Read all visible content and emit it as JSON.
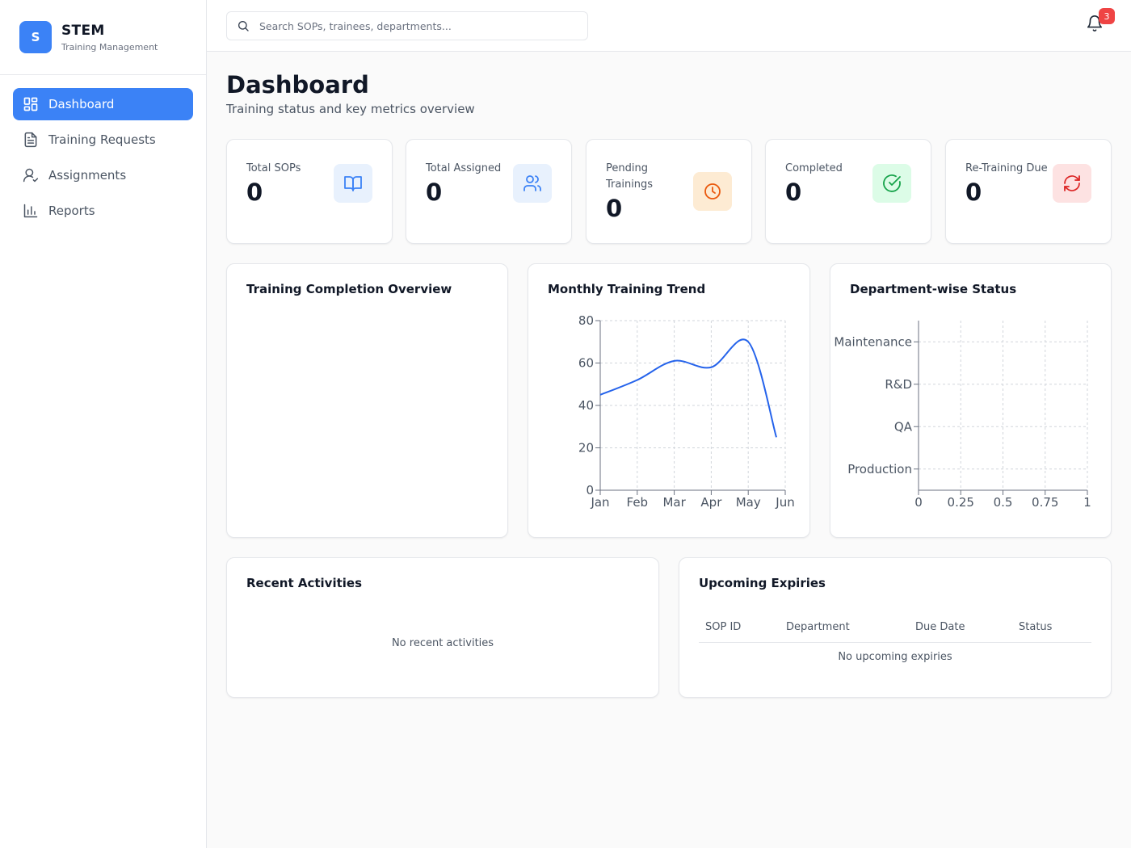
{
  "sidebar": {
    "brand": {
      "logo_letter": "S",
      "name": "STEM",
      "subtitle": "Training Management"
    },
    "items": [
      {
        "label": "Dashboard",
        "icon": "grid-icon",
        "active": true
      },
      {
        "label": "Training Requests",
        "icon": "file-text-icon",
        "active": false
      },
      {
        "label": "Assignments",
        "icon": "user-check-icon",
        "active": false
      },
      {
        "label": "Reports",
        "icon": "bar-chart-icon",
        "active": false
      }
    ]
  },
  "topbar": {
    "search_placeholder": "Search SOPs, trainees, departments...",
    "notification_count": "3"
  },
  "page": {
    "title": "Dashboard",
    "subtitle": "Training status and key metrics overview"
  },
  "stats": [
    {
      "label": "Total SOPs",
      "value": "0",
      "icon": "book-open-icon",
      "icon_bg": "#e8f1fd",
      "icon_color": "#3b82f6"
    },
    {
      "label": "Total Assigned",
      "value": "0",
      "icon": "users-icon",
      "icon_bg": "#e8f1fd",
      "icon_color": "#3b82f6"
    },
    {
      "label": "Pending Trainings",
      "value": "0",
      "icon": "clock-icon",
      "icon_bg": "#fdebd3",
      "icon_color": "#ea580c"
    },
    {
      "label": "Completed",
      "value": "0",
      "icon": "check-circle-icon",
      "icon_bg": "#dcfce7",
      "icon_color": "#16a34a"
    },
    {
      "label": "Re-Training Due",
      "value": "0",
      "icon": "refresh-icon",
      "icon_bg": "#fde2e2",
      "icon_color": "#dc2626"
    }
  ],
  "panels": {
    "completion_title": "Training Completion Overview",
    "trend_title": "Monthly Training Trend",
    "dept_title": "Department-wise Status",
    "recent_title": "Recent Activities",
    "recent_empty": "No recent activities",
    "expiries_title": "Upcoming Expiries",
    "expiries_columns": [
      "SOP ID",
      "Department",
      "Due Date",
      "Status"
    ],
    "expiries_empty": "No upcoming expiries"
  },
  "chart_data": [
    {
      "type": "line",
      "title": "Monthly Training Trend",
      "x": [
        "Jan",
        "Feb",
        "Mar",
        "Apr",
        "May",
        "Jun"
      ],
      "series": [
        {
          "values": [
            45,
            52,
            61,
            58,
            70,
            25
          ],
          "color": "#2563eb"
        }
      ],
      "yticks": [
        "0",
        "20",
        "40",
        "60",
        "80"
      ],
      "ylim": [
        0,
        80
      ],
      "grid": true
    },
    {
      "type": "bar",
      "orientation": "horizontal",
      "title": "Department-wise Status",
      "categories": [
        "Maintenance",
        "R&D",
        "QA",
        "Production"
      ],
      "values": [
        0,
        0,
        0,
        0
      ],
      "xticks": [
        "0",
        "0.25",
        "0.5",
        "0.75",
        "1"
      ],
      "xlim": [
        0,
        1
      ],
      "grid": true
    }
  ]
}
